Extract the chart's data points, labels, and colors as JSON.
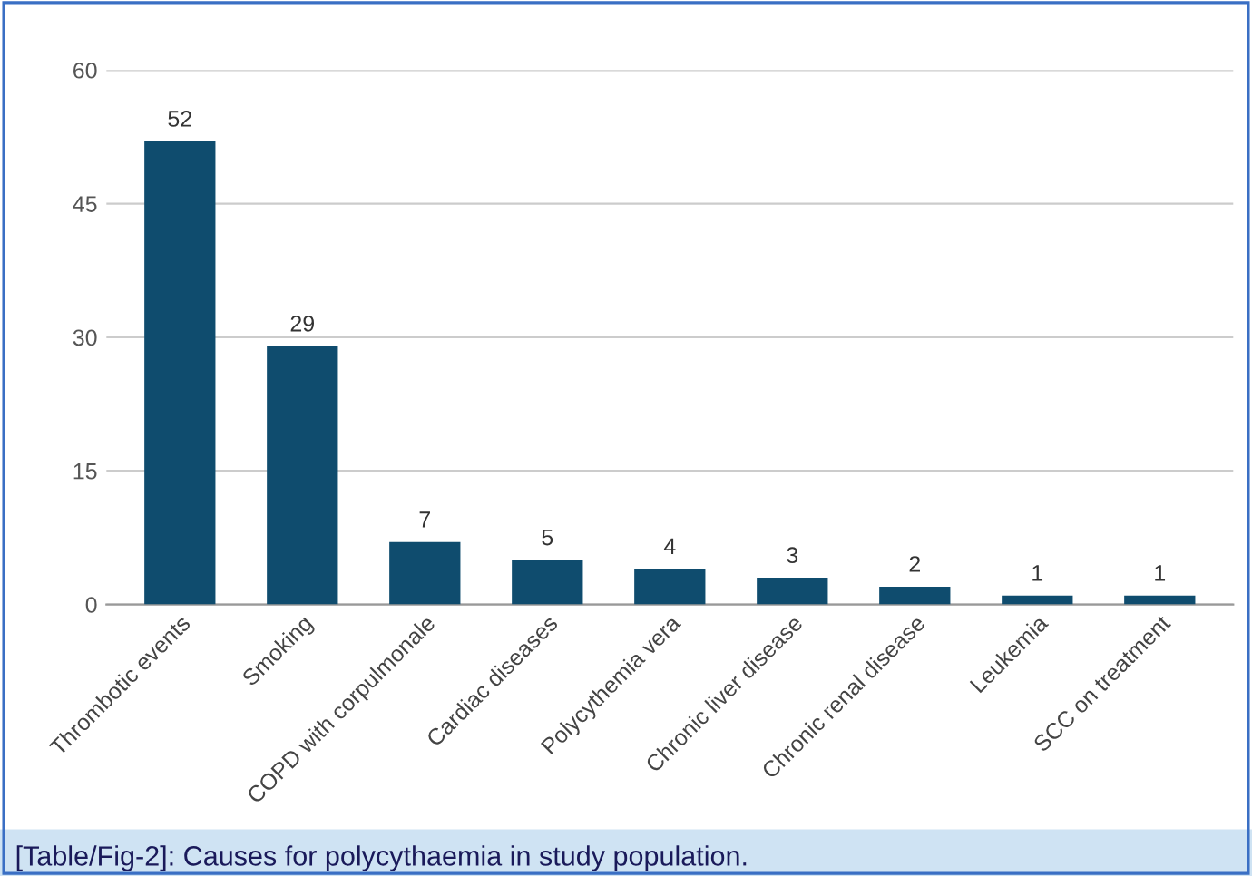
{
  "chart_data": {
    "type": "bar",
    "categories": [
      "Thrombotic events",
      "Smoking",
      "COPD with corpulmonale",
      "Cardiac diseases",
      "Polycythemia vera",
      "Chronic liver disease",
      "Chronic renal disease",
      "Leukemia",
      "SCC on treatment"
    ],
    "values": [
      52,
      29,
      7,
      5,
      4,
      3,
      2,
      1,
      1
    ],
    "color": "#0f4c6e",
    "ylim": [
      0,
      60
    ],
    "yticks": [
      0,
      15,
      30,
      45,
      60
    ],
    "grid": "y",
    "data_labels": true,
    "annotations": [
      "[Table/Fig-2]: Causes for polycythaemia in study population."
    ]
  }
}
